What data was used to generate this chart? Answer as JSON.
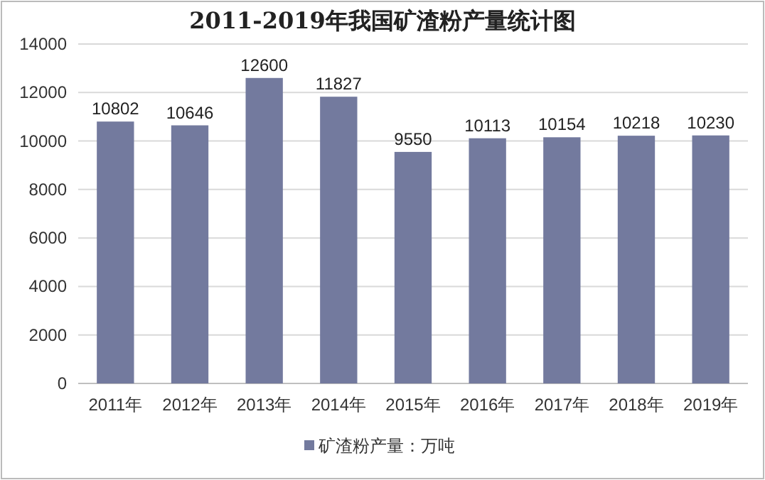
{
  "chart_data": {
    "type": "bar",
    "title": "2011-2019年我国矿渣粉产量统计图",
    "categories": [
      "2011年",
      "2012年",
      "2013年",
      "2014年",
      "2015年",
      "2016年",
      "2017年",
      "2018年",
      "2019年"
    ],
    "series": [
      {
        "name": "矿渣粉产量：万吨",
        "color": "#737a9e",
        "values": [
          10802,
          10646,
          12600,
          11827,
          9550,
          10113,
          10154,
          10218,
          10230
        ]
      }
    ],
    "ylim": [
      0,
      14000
    ],
    "yticks": [
      0,
      2000,
      4000,
      6000,
      8000,
      10000,
      12000,
      14000
    ],
    "grid": "y",
    "legend": "bottom",
    "data_labels": true
  }
}
